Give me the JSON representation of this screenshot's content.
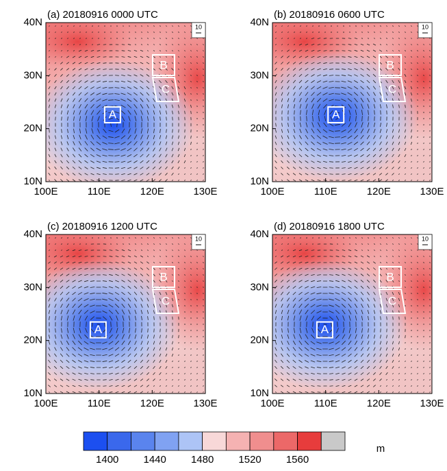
{
  "panels": [
    {
      "title": "(a) 20180916 0000 UTC"
    },
    {
      "title": "(b) 20180916 0600 UTC"
    },
    {
      "title": "(c) 20180916 1200 UTC"
    },
    {
      "title": "(d) 20180916 1800 UTC"
    }
  ],
  "axes": {
    "lat_labels": [
      "10N",
      "20N",
      "30N",
      "40N"
    ],
    "lon_labels": [
      "100E",
      "110E",
      "120E",
      "130E"
    ]
  },
  "regions": [
    "A",
    "B",
    "C"
  ],
  "reference_vector": "10",
  "colorbar": {
    "labels": [
      "1400",
      "1440",
      "1480",
      "1520",
      "1560"
    ],
    "unit": "m",
    "colors": [
      "#1c4ff0",
      "#3a68ec",
      "#5a84ee",
      "#80a2f2",
      "#adc4f6",
      "#f8d8d8",
      "#f5b2b2",
      "#f08e8e",
      "#ec6868",
      "#e73c3c",
      "#c9c9c9"
    ]
  }
}
